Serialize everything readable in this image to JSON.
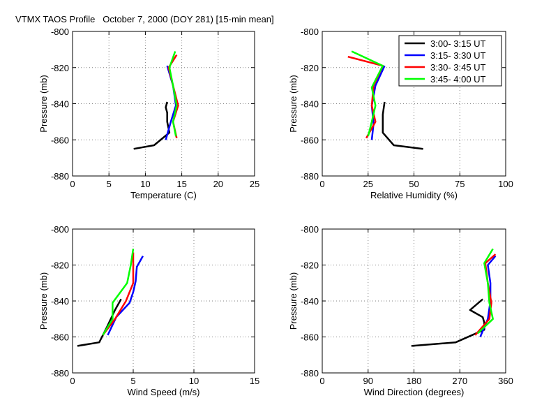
{
  "figure_title": "VTMX TAOS Profile   October 7, 2000 (DOY 281) [15-min mean]",
  "colors": {
    "3:00- 3:15 UT": "#000000",
    "3:15- 3:30 UT": "#0000ff",
    "3:30- 3:45 UT": "#ff0000",
    "3:45- 4:00 UT": "#00ff00"
  },
  "chart_data": [
    {
      "id": "temperature",
      "type": "line",
      "title": "VTMX TAOS Profile   October 7, 2000 (DOY 281) [15-min mean]",
      "xlabel": "Temperature (C)",
      "ylabel": "Pressure (mb)",
      "xlim": [
        0,
        25
      ],
      "ylim": [
        -880,
        -800
      ],
      "xticks": [
        0,
        5,
        10,
        15,
        20,
        25
      ],
      "yticks": [
        -880,
        -860,
        -840,
        -820,
        -800
      ],
      "xticklabels": [
        "0",
        "5",
        "10",
        "15",
        "20",
        "25"
      ],
      "yticklabels": [
        "-880",
        "-860",
        "-840",
        "-820",
        "-800"
      ],
      "grid": true,
      "series": [
        {
          "name": "3:00- 3:15 UT",
          "x": [
            13.0,
            12.8,
            13.0,
            13.0,
            13.3,
            11.2,
            8.4
          ],
          "y": [
            -839,
            -842,
            -845,
            -850,
            -856,
            -863,
            -865
          ]
        },
        {
          "name": "3:15- 3:30 UT",
          "x": [
            13.0,
            13.8,
            14.2,
            13.5,
            12.8
          ],
          "y": [
            -819,
            -830,
            -841,
            -850,
            -860
          ]
        },
        {
          "name": "3:30- 3:45 UT",
          "x": [
            14.3,
            13.2,
            13.8,
            14.5,
            13.8,
            14.3
          ],
          "y": [
            -813,
            -820,
            -830,
            -841,
            -850,
            -859
          ]
        },
        {
          "name": "3:45- 4:00 UT",
          "x": [
            14.1,
            13.3,
            13.8,
            14.3,
            13.8,
            14.2
          ],
          "y": [
            -811,
            -820,
            -830,
            -841,
            -850,
            -858
          ]
        }
      ]
    },
    {
      "id": "humidity",
      "type": "line",
      "xlabel": "Relative Humidity (%)",
      "ylabel": "Pressure (mb)",
      "xlim": [
        0,
        100
      ],
      "ylim": [
        -880,
        -800
      ],
      "xticks": [
        0,
        25,
        50,
        75,
        100
      ],
      "yticks": [
        -880,
        -860,
        -840,
        -820,
        -800
      ],
      "xticklabels": [
        "0",
        "25",
        "50",
        "75",
        "100"
      ],
      "yticklabels": [
        "-880",
        "-860",
        "-840",
        "-820",
        "-800"
      ],
      "grid": true,
      "legend": {
        "location": "top-right",
        "entries": [
          "3:00- 3:15 UT",
          "3:15- 3:30 UT",
          "3:30- 3:45 UT",
          "3:45- 4:00 UT"
        ]
      },
      "series": [
        {
          "name": "3:00- 3:15 UT",
          "x": [
            34,
            33,
            33,
            39,
            55
          ],
          "y": [
            -839,
            -846,
            -856,
            -863,
            -865
          ]
        },
        {
          "name": "3:15- 3:30 UT",
          "x": [
            34,
            29,
            27,
            28,
            27
          ],
          "y": [
            -819,
            -830,
            -841,
            -851,
            -860
          ]
        },
        {
          "name": "3:30- 3:45 UT",
          "x": [
            14,
            33,
            28,
            27,
            29,
            24
          ],
          "y": [
            -814,
            -819,
            -830,
            -841,
            -850,
            -859
          ]
        },
        {
          "name": "3:45- 4:00 UT",
          "x": [
            16,
            33,
            27,
            29,
            27,
            25
          ],
          "y": [
            -811,
            -819,
            -831,
            -841,
            -850,
            -858
          ]
        }
      ]
    },
    {
      "id": "wind_speed",
      "type": "line",
      "xlabel": "Wind Speed (m/s)",
      "ylabel": "Pressure (mb)",
      "xlim": [
        0,
        15
      ],
      "ylim": [
        -880,
        -800
      ],
      "xticks": [
        0,
        5,
        10,
        15
      ],
      "yticks": [
        -880,
        -860,
        -840,
        -820,
        -800
      ],
      "xticklabels": [
        "0",
        "5",
        "10",
        "15"
      ],
      "yticklabels": [
        "-880",
        "-860",
        "-840",
        "-820",
        "-800"
      ],
      "grid": true,
      "series": [
        {
          "name": "3:00- 3:15 UT",
          "x": [
            4.0,
            3.5,
            2.8,
            2.2,
            0.4
          ],
          "y": [
            -839,
            -845,
            -855,
            -863,
            -865
          ]
        },
        {
          "name": "3:15- 3:30 UT",
          "x": [
            5.8,
            5.3,
            5.2,
            5.0,
            4.7,
            3.6,
            2.9
          ],
          "y": [
            -815,
            -821,
            -829,
            -835,
            -841,
            -849,
            -859
          ]
        },
        {
          "name": "3:30- 3:45 UT",
          "x": [
            5.0,
            5.0,
            5.0,
            4.4,
            3.5,
            2.5
          ],
          "y": [
            -813,
            -820,
            -830,
            -840,
            -850,
            -859
          ]
        },
        {
          "name": "3:45- 4:00 UT",
          "x": [
            5.0,
            4.8,
            4.5,
            3.3,
            3.3,
            2.5
          ],
          "y": [
            -811,
            -820,
            -830,
            -841,
            -850,
            -859
          ]
        }
      ]
    },
    {
      "id": "wind_direction",
      "type": "line",
      "xlabel": "Wind Direction (degrees)",
      "ylabel": "Pressure (mb)",
      "xlim": [
        0,
        360
      ],
      "ylim": [
        -880,
        -800
      ],
      "xticks": [
        0,
        90,
        180,
        270,
        360
      ],
      "yticks": [
        -880,
        -860,
        -840,
        -820,
        -800
      ],
      "xticklabels": [
        "0",
        "90",
        "180",
        "270",
        "360"
      ],
      "yticklabels": [
        "-880",
        "-860",
        "-840",
        "-820",
        "-800"
      ],
      "grid": true,
      "series": [
        {
          "name": "3:00- 3:15 UT",
          "x": [
            315,
            290,
            315,
            318,
            318,
            262,
            175
          ],
          "y": [
            -839,
            -845,
            -849,
            -852,
            -856,
            -863,
            -865
          ]
        },
        {
          "name": "3:15- 3:30 UT",
          "x": [
            340,
            325,
            330,
            330,
            325,
            310
          ],
          "y": [
            -815,
            -820,
            -830,
            -840,
            -850,
            -860
          ]
        },
        {
          "name": "3:30- 3:45 UT",
          "x": [
            340,
            320,
            325,
            332,
            328,
            300
          ],
          "y": [
            -814,
            -819,
            -830,
            -841,
            -850,
            -859
          ]
        },
        {
          "name": "3:45- 4:00 UT",
          "x": [
            335,
            318,
            325,
            328,
            335,
            305
          ],
          "y": [
            -811,
            -819,
            -830,
            -841,
            -850,
            -858
          ]
        }
      ]
    }
  ]
}
